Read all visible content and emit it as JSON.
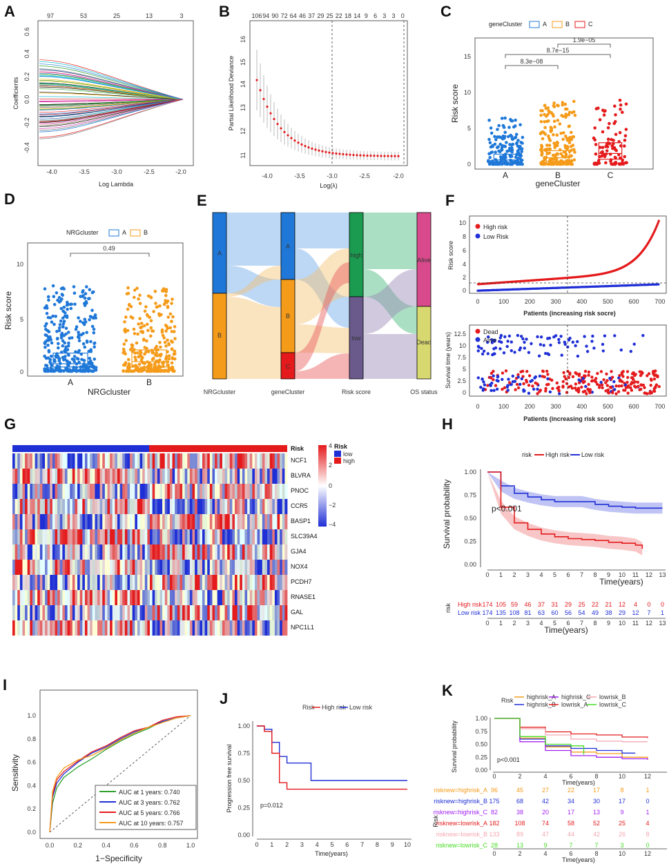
{
  "panels": {
    "A": {
      "label": "A",
      "xlabel": "Log Lambda",
      "ylabel": "Coefficients",
      "top_ticks": [
        "97",
        "53",
        "25",
        "13",
        "3"
      ],
      "x_ticks": [
        "-4.0",
        "-3.5",
        "-3.0",
        "-2.5",
        "-2.0"
      ],
      "y_ticks": [
        "-0.4",
        "-0.2",
        "0.0",
        "0.2",
        "0.4",
        "0.6"
      ]
    },
    "B": {
      "label": "B",
      "xlabel": "Log(λ)",
      "ylabel": "Partial Likelihood Deviance",
      "top_ticks": [
        "106",
        "94",
        "90",
        "72",
        "64",
        "46",
        "37",
        "29",
        "25",
        "22",
        "18",
        "14",
        "9",
        "6",
        "3",
        "3",
        "0"
      ],
      "x_ticks": [
        "-4.0",
        "-3.5",
        "-3.0",
        "-2.5",
        "-2.0"
      ],
      "y_ticks": [
        "11",
        "12",
        "13",
        "14",
        "15",
        "16"
      ]
    },
    "C": {
      "label": "C",
      "legend_title": "geneCluster",
      "legend": [
        "A",
        "B",
        "C"
      ],
      "xlabel": "geneCluster",
      "ylabel": "Risk score",
      "categories": [
        "A",
        "B",
        "C"
      ],
      "y_ticks": [
        "0",
        "5",
        "10",
        "15"
      ],
      "pvalues": [
        "8.3e−08",
        "8.7e−15",
        "1.9e−05"
      ]
    },
    "D": {
      "label": "D",
      "legend_title": "NRGcluster",
      "legend": [
        "A",
        "B"
      ],
      "xlabel": "NRGcluster",
      "ylabel": "Risk score",
      "categories": [
        "A",
        "B"
      ],
      "y_ticks": [
        "0",
        "5",
        "10"
      ],
      "pvalue": "0.49"
    },
    "E": {
      "label": "E",
      "axis_labels": [
        "NRGcluster",
        "geneCluster",
        "Risk score",
        "OS status"
      ],
      "col1": [
        "A",
        "B"
      ],
      "col2": [
        "A",
        "B",
        "C"
      ],
      "col3": [
        "high",
        "low"
      ],
      "col4": [
        "Alive",
        "Dead"
      ]
    },
    "F": {
      "label": "F",
      "top": {
        "ylabel": "Risk score",
        "xlabel": "Patients (increasing risk socre)",
        "legend": [
          "High risk",
          "Low Risk"
        ],
        "x_ticks": [
          "0",
          "100",
          "200",
          "300",
          "400",
          "500",
          "600",
          "700"
        ],
        "y_ticks": [
          "0",
          "2",
          "4",
          "6",
          "8",
          "10"
        ]
      },
      "bottom": {
        "ylabel": "Survival time (years)",
        "xlabel": "Patients (increasing risk score)",
        "legend": [
          "Dead",
          "Alive"
        ],
        "x_ticks": [
          "0",
          "100",
          "200",
          "300",
          "400",
          "500",
          "600",
          "700"
        ],
        "y_ticks": [
          "0",
          "2.5",
          "5",
          "7.5",
          "10",
          "12.5"
        ]
      }
    },
    "G": {
      "label": "G",
      "annotation_label": "Risk",
      "genes": [
        "NCF1",
        "BLVRA",
        "PNOC",
        "CCR5",
        "BASP1",
        "SLC39A4",
        "GJA4",
        "NOX4",
        "PCDH7",
        "RNASE1",
        "GAL",
        "NPC1L1"
      ],
      "scale_ticks": [
        "4",
        "2",
        "0",
        "−2",
        "−4"
      ],
      "legend_title": "Risk",
      "legend": [
        "low",
        "high"
      ]
    },
    "H": {
      "label": "H",
      "legend_title": "risk",
      "legend": [
        "High risk",
        "Low risk"
      ],
      "ylabel": "Survival probability",
      "xlabel": "Time(years)",
      "pvalue": "p<0.001",
      "x_ticks": [
        "0",
        "1",
        "2",
        "3",
        "4",
        "5",
        "6",
        "7",
        "8",
        "9",
        "10",
        "11",
        "12",
        "13"
      ],
      "y_ticks": [
        "0.00",
        "0.25",
        "0.50",
        "0.75",
        "1.00"
      ],
      "risk_table": {
        "ylabel": "risk",
        "rows": [
          {
            "name": "High risk",
            "values": [
              "174",
              "105",
              "59",
              "46",
              "37",
              "31",
              "29",
              "25",
              "22",
              "21",
              "12",
              "4",
              "0",
              "0"
            ]
          },
          {
            "name": "Low risk",
            "values": [
              "174",
              "135",
              "108",
              "81",
              "63",
              "60",
              "56",
              "54",
              "49",
              "38",
              "29",
              "12",
              "7",
              "1"
            ]
          }
        ],
        "xlabel": "Time(years)"
      }
    },
    "I": {
      "label": "I",
      "ylabel": "Sensitivity",
      "xlabel": "1−Specificity",
      "x_ticks": [
        "0.0",
        "0.2",
        "0.4",
        "0.6",
        "0.8",
        "1.0"
      ],
      "y_ticks": [
        "0.0",
        "0.2",
        "0.4",
        "0.6",
        "0.8",
        "1.0"
      ],
      "legend": [
        "AUC at 1 years: 0.740",
        "AUC at 3 years: 0.762",
        "AUC at 5 years: 0.766",
        "AUC at 10 years: 0.757"
      ]
    },
    "J": {
      "label": "J",
      "legend_title": "Risk",
      "legend": [
        "High risk",
        "Low risk"
      ],
      "ylabel": "Progression free survival",
      "xlabel": "Time(years)",
      "pvalue": "p=0.012",
      "x_ticks": [
        "0",
        "1",
        "2",
        "3",
        "4",
        "5",
        "6",
        "7",
        "8",
        "9",
        "10"
      ],
      "y_ticks": [
        "0.00",
        "0.25",
        "0.50",
        "0.75",
        "1.00"
      ]
    },
    "K": {
      "label": "K",
      "legend_title": "Risk",
      "legend": [
        "highrisk_A",
        "highrisk_B",
        "highrisk_C",
        "lowrisk_A",
        "lowrisk_B",
        "lowrisk_C"
      ],
      "ylabel": "Survival probability",
      "xlabel": "Time(years)",
      "pvalue": "p<0.001",
      "x_ticks": [
        "0",
        "2",
        "4",
        "6",
        "8",
        "10",
        "12"
      ],
      "y_ticks": [
        "0.00",
        "0.25",
        "0.50",
        "0.75",
        "1.00"
      ],
      "risk_table": {
        "ylabel": "Risk",
        "rows": [
          {
            "name": "risknew=highrisk_A",
            "values": [
              "96",
              "45",
              "27",
              "22",
              "17",
              "8",
              "1"
            ]
          },
          {
            "name": "risknew=highrisk_B",
            "values": [
              "175",
              "68",
              "42",
              "34",
              "30",
              "17",
              "0"
            ]
          },
          {
            "name": "risknew=highrisk_C",
            "values": [
              "82",
              "38",
              "20",
              "17",
              "13",
              "9",
              "1"
            ]
          },
          {
            "name": "risknew=lowrisk_A",
            "values": [
              "182",
              "108",
              "74",
              "58",
              "52",
              "25",
              "4"
            ]
          },
          {
            "name": "risknew=lowrisk_B",
            "values": [
              "133",
              "89",
              "47",
              "44",
              "42",
              "26",
              "8"
            ]
          },
          {
            "name": "risknew=lowrisk_C",
            "values": [
              "28",
              "13",
              "9",
              "7",
              "7",
              "3",
              "0"
            ]
          }
        ],
        "xlabel": "Time(years)"
      }
    }
  },
  "chart_data": [
    {
      "panel": "H",
      "type": "line",
      "title": "",
      "xlabel": "Time(years)",
      "ylabel": "Survival probability",
      "ylim": [
        0,
        1
      ],
      "series": [
        {
          "name": "High risk",
          "x": [
            0,
            1,
            2,
            3,
            4,
            5,
            6,
            7,
            8,
            9,
            10,
            11,
            11.5
          ],
          "y": [
            1.0,
            0.62,
            0.45,
            0.38,
            0.33,
            0.3,
            0.28,
            0.27,
            0.26,
            0.24,
            0.23,
            0.21,
            0.17
          ]
        },
        {
          "name": "Low risk",
          "x": [
            0,
            1,
            2,
            3,
            4,
            5,
            6,
            7,
            8,
            9,
            10,
            11,
            12,
            13
          ],
          "y": [
            1.0,
            0.85,
            0.77,
            0.73,
            0.7,
            0.68,
            0.68,
            0.68,
            0.65,
            0.63,
            0.62,
            0.61,
            0.61,
            0.61
          ]
        }
      ]
    },
    {
      "panel": "I",
      "type": "line",
      "xlabel": "1−Specificity",
      "ylabel": "Sensitivity",
      "ylim": [
        0,
        1
      ],
      "series": [
        {
          "name": "AUC at 1 years: 0.740",
          "x": [
            0,
            0.02,
            0.05,
            0.1,
            0.2,
            0.3,
            0.4,
            0.5,
            0.6,
            0.7,
            0.8,
            0.9,
            1
          ],
          "y": [
            0,
            0.25,
            0.38,
            0.47,
            0.56,
            0.63,
            0.71,
            0.78,
            0.84,
            0.89,
            0.95,
            0.98,
            1
          ]
        },
        {
          "name": "AUC at 3 years: 0.762",
          "x": [
            0,
            0.02,
            0.05,
            0.1,
            0.2,
            0.3,
            0.4,
            0.5,
            0.6,
            0.7,
            0.8,
            0.9,
            1
          ],
          "y": [
            0,
            0.3,
            0.42,
            0.5,
            0.6,
            0.68,
            0.73,
            0.8,
            0.86,
            0.9,
            0.95,
            0.98,
            1
          ]
        },
        {
          "name": "AUC at 5 years: 0.766",
          "x": [
            0,
            0.02,
            0.05,
            0.1,
            0.2,
            0.3,
            0.4,
            0.5,
            0.6,
            0.7,
            0.8,
            0.9,
            1
          ],
          "y": [
            0,
            0.32,
            0.45,
            0.52,
            0.61,
            0.69,
            0.74,
            0.81,
            0.87,
            0.9,
            0.96,
            0.99,
            1
          ]
        },
        {
          "name": "AUC at 10 years: 0.757",
          "x": [
            0,
            0.02,
            0.05,
            0.1,
            0.2,
            0.3,
            0.4,
            0.5,
            0.6,
            0.7,
            0.8,
            0.9,
            1
          ],
          "y": [
            0,
            0.35,
            0.47,
            0.55,
            0.62,
            0.66,
            0.72,
            0.79,
            0.85,
            0.9,
            0.94,
            0.98,
            1
          ]
        }
      ]
    },
    {
      "panel": "J",
      "type": "line",
      "xlabel": "Time(years)",
      "ylabel": "Progression free survival",
      "ylim": [
        0,
        1
      ],
      "series": [
        {
          "name": "High risk",
          "x": [
            0,
            0.5,
            1,
            1.5,
            2,
            3,
            4,
            6,
            8,
            10
          ],
          "y": [
            1.0,
            0.95,
            0.75,
            0.48,
            0.42,
            0.42,
            0.42,
            0.42,
            0.42,
            0.42
          ]
        },
        {
          "name": "Low risk",
          "x": [
            0,
            0.5,
            1,
            1.5,
            2,
            3,
            3.6,
            4,
            6,
            8,
            10
          ],
          "y": [
            1.0,
            0.97,
            0.85,
            0.72,
            0.66,
            0.66,
            0.5,
            0.5,
            0.5,
            0.5,
            0.5
          ]
        }
      ]
    },
    {
      "panel": "K",
      "type": "line",
      "xlabel": "Time(years)",
      "ylabel": "Survival probability",
      "ylim": [
        0,
        1
      ],
      "series": [
        {
          "name": "highrisk_A",
          "x": [
            0,
            2,
            4,
            6,
            8,
            10,
            12
          ],
          "y": [
            1.0,
            0.62,
            0.45,
            0.35,
            0.32,
            0.25,
            0.22
          ]
        },
        {
          "name": "highrisk_B",
          "x": [
            0,
            2,
            4,
            6,
            8,
            10,
            11
          ],
          "y": [
            1.0,
            0.6,
            0.47,
            0.42,
            0.38,
            0.33,
            0.32
          ]
        },
        {
          "name": "highrisk_C",
          "x": [
            0,
            2,
            4,
            6,
            8,
            10,
            12
          ],
          "y": [
            1.0,
            0.55,
            0.38,
            0.28,
            0.25,
            0.22,
            0.2
          ]
        },
        {
          "name": "lowrisk_A",
          "x": [
            0,
            2,
            4,
            6,
            8,
            10,
            12
          ],
          "y": [
            1.0,
            0.83,
            0.74,
            0.7,
            0.68,
            0.64,
            0.62
          ]
        },
        {
          "name": "lowrisk_B",
          "x": [
            0,
            2,
            4,
            6,
            8,
            10,
            12
          ],
          "y": [
            1.0,
            0.8,
            0.68,
            0.6,
            0.56,
            0.55,
            0.55
          ]
        },
        {
          "name": "lowrisk_C",
          "x": [
            0,
            2,
            4,
            6,
            7
          ],
          "y": [
            1.0,
            0.65,
            0.5,
            0.47,
            0.3
          ]
        }
      ]
    }
  ],
  "colors": {
    "red": "#e41a1c",
    "blue": "#1f2fd6",
    "orange": "#f59b1a",
    "lightblue": "#1f78d8",
    "green": "#2ca02c"
  }
}
